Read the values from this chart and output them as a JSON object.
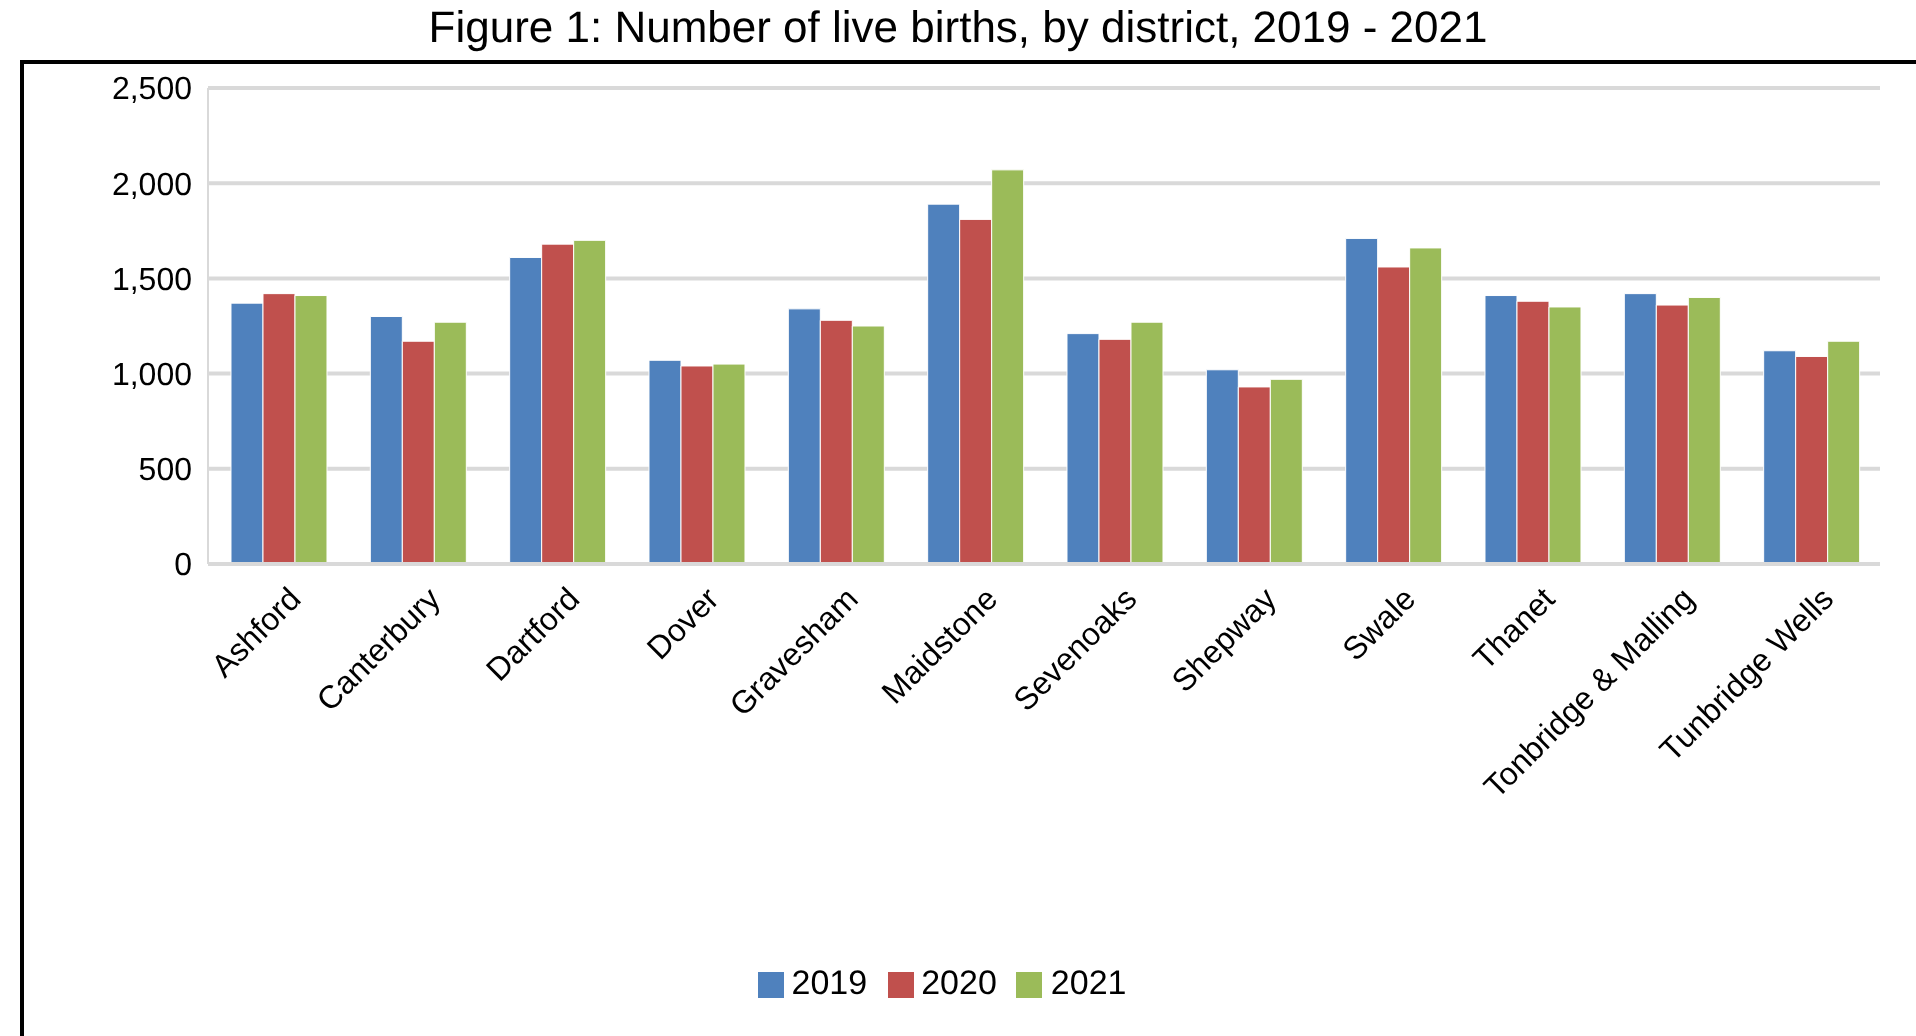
{
  "chart_data": {
    "type": "bar",
    "title": "Figure 1: Number of live births, by district, 2019 - 2021",
    "categories": [
      "Ashford",
      "Canterbury",
      "Dartford",
      "Dover",
      "Gravesham",
      "Maidstone",
      "Sevenoaks",
      "Shepway",
      "Swale",
      "Thanet",
      "Tonbridge & Malling",
      "Tunbridge Wells"
    ],
    "series": [
      {
        "name": "2019",
        "color": "#4f81bd",
        "values": [
          1370,
          1300,
          1610,
          1070,
          1340,
          1890,
          1210,
          1020,
          1710,
          1410,
          1420,
          1120
        ]
      },
      {
        "name": "2020",
        "color": "#c0504d",
        "values": [
          1420,
          1170,
          1680,
          1040,
          1280,
          1810,
          1180,
          930,
          1560,
          1380,
          1360,
          1090
        ]
      },
      {
        "name": "2021",
        "color": "#9bbb59",
        "values": [
          1410,
          1270,
          1700,
          1050,
          1250,
          2070,
          1270,
          970,
          1660,
          1350,
          1400,
          1170
        ]
      }
    ],
    "ylim": [
      0,
      2500
    ],
    "yticks": [
      0,
      500,
      {
        "value": 1000,
        "label": "1,000"
      },
      {
        "value": 1500,
        "label": "1,500"
      },
      {
        "value": 2000,
        "label": "2,000"
      },
      {
        "value": 2500,
        "label": "2,500"
      }
    ],
    "grid": "y",
    "legend": "bottom"
  }
}
